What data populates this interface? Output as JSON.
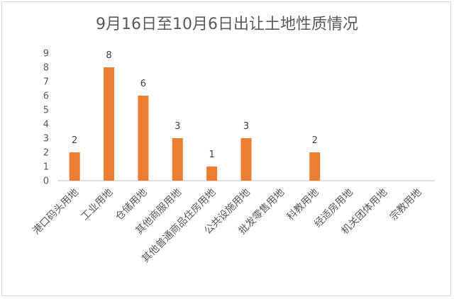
{
  "chart_data": {
    "type": "bar",
    "title": "9月16日至10月6日出让土地性质情况",
    "categories": [
      "港口码头用地",
      "工业用地",
      "仓储用地",
      "其他商服用地",
      "其他普通商品住房用地",
      "公共设施用地",
      "批发零售用地",
      "科教用地",
      "经适房用地",
      "机关团体用地",
      "宗教用地"
    ],
    "values": [
      2,
      8,
      6,
      3,
      1,
      3,
      0,
      2,
      0,
      0,
      0
    ],
    "data_labels": [
      "2",
      "8",
      "6",
      "3",
      "1",
      "3",
      "",
      "2",
      "",
      "",
      ""
    ],
    "ylim": [
      0,
      9
    ],
    "yticks": [
      "0",
      "1",
      "2",
      "3",
      "4",
      "5",
      "6",
      "7",
      "8",
      "9"
    ],
    "grid": false,
    "bar_color": "#ED7D31",
    "axis_color": "#bfbfbf"
  }
}
